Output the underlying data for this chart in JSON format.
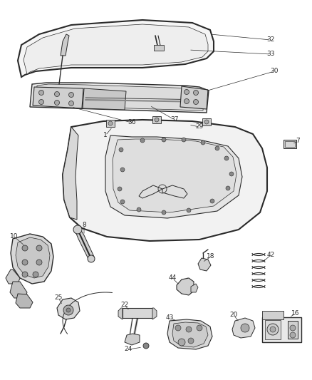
{
  "bg_color": "#ffffff",
  "line_color": "#2a2a2a",
  "label_color": "#2a2a2a",
  "label_size": 6.5,
  "fig_width": 4.38,
  "fig_height": 5.33,
  "dpi": 100
}
